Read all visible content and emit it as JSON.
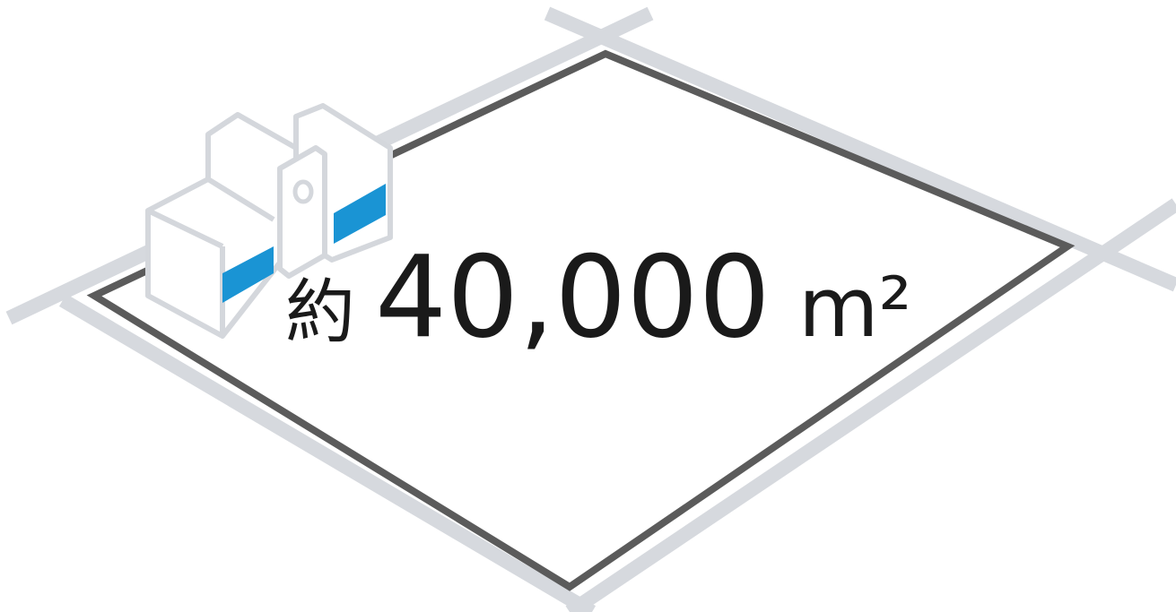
{
  "label": {
    "prefix": "約",
    "value": "40,000",
    "unit": "m²"
  }
}
